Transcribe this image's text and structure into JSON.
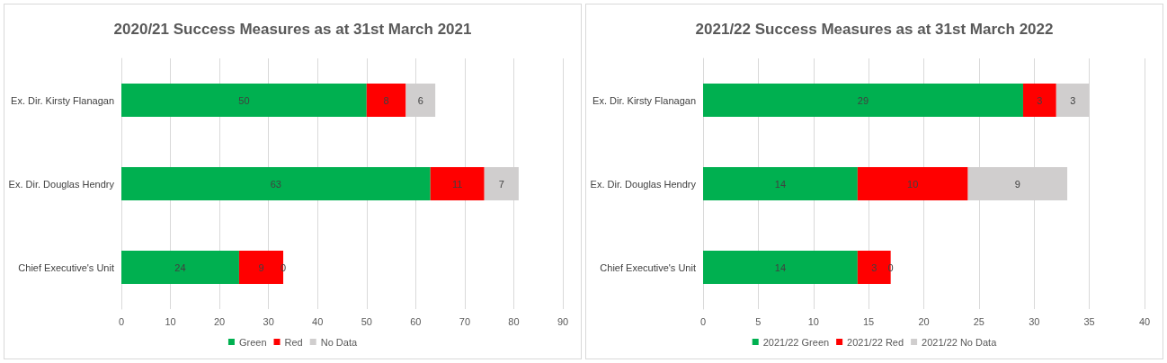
{
  "chart_data": [
    {
      "type": "bar",
      "orientation": "horizontal",
      "stacked": true,
      "title": "2020/21 Success Measures as at 31st March 2021",
      "categories": [
        "Ex. Dir. Kirsty Flanagan",
        "Ex. Dir. Douglas Hendry",
        "Chief Executive's Unit"
      ],
      "series": [
        {
          "name": "Green",
          "color": "#00b050",
          "values": [
            50,
            63,
            24
          ]
        },
        {
          "name": "Red",
          "color": "#ff0000",
          "values": [
            8,
            11,
            9
          ]
        },
        {
          "name": "No Data",
          "color": "#d0cece",
          "values": [
            6,
            7,
            0
          ]
        }
      ],
      "xlim": [
        0,
        90
      ],
      "xticks": [
        0,
        10,
        20,
        30,
        40,
        50,
        60,
        70,
        80,
        90
      ],
      "grid": "x",
      "legend": "bottom",
      "data_labels": true
    },
    {
      "type": "bar",
      "orientation": "horizontal",
      "stacked": true,
      "title": "2021/22 Success Measures as at 31st March 2022",
      "categories": [
        "Ex. Dir. Kirsty Flanagan",
        "Ex. Dir. Douglas Hendry",
        "Chief Executive's Unit"
      ],
      "series": [
        {
          "name": "2021/22 Green",
          "color": "#00b050",
          "values": [
            29,
            14,
            14
          ]
        },
        {
          "name": "2021/22 Red",
          "color": "#ff0000",
          "values": [
            3,
            10,
            3
          ]
        },
        {
          "name": "2021/22 No Data",
          "color": "#d0cece",
          "values": [
            3,
            9,
            0
          ]
        }
      ],
      "xlim": [
        0,
        40
      ],
      "xticks": [
        0,
        5,
        10,
        15,
        20,
        25,
        30,
        35,
        40
      ],
      "grid": "x",
      "legend": "bottom",
      "data_labels": true
    }
  ]
}
